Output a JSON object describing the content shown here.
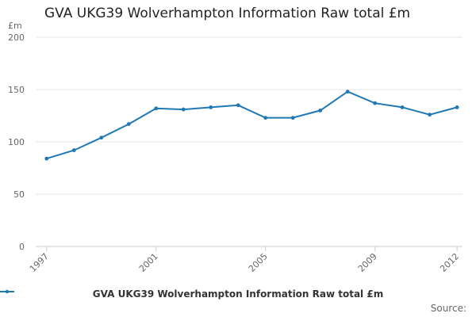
{
  "chart_data": {
    "type": "line",
    "title": "GVA UKG39 Wolverhampton Information Raw total £m",
    "ylabel": "£m",
    "xlabel": "",
    "ylim": [
      0,
      200
    ],
    "yticks": [
      0,
      50,
      100,
      150,
      200
    ],
    "xticks": [
      1997,
      2001,
      2005,
      2009,
      2012
    ],
    "grid": true,
    "legend_position": "bottom",
    "series": [
      {
        "name": "GVA UKG39 Wolverhampton Information Raw total £m",
        "color": "#1f78b4",
        "x": [
          1997,
          1998,
          1999,
          2000,
          2001,
          2002,
          2003,
          2004,
          2005,
          2006,
          2007,
          2008,
          2009,
          2010,
          2011,
          2012
        ],
        "values": [
          84,
          92,
          104,
          117,
          132,
          131,
          133,
          135,
          123,
          123,
          130,
          148,
          137,
          133,
          126,
          133
        ]
      }
    ]
  },
  "footer": {
    "source_label": "Source:"
  }
}
